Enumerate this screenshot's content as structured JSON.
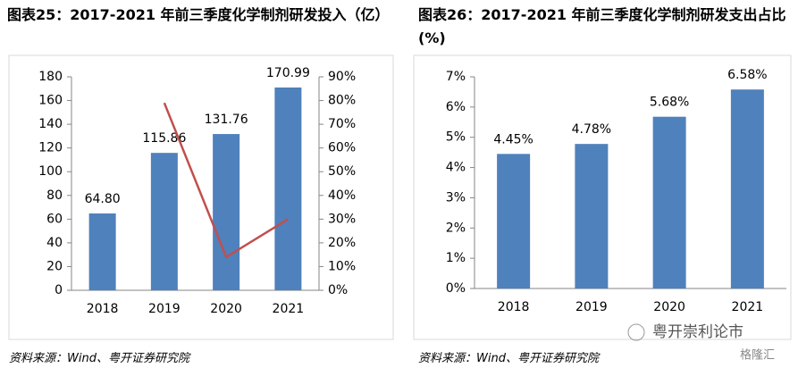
{
  "chart_data": [
    {
      "type": "combo",
      "title": "图表25：2017-2021 年前三季度化学制剂研发投入（亿）",
      "categories": [
        "2018",
        "2019",
        "2020",
        "2021"
      ],
      "series": [
        {
          "type": "bar",
          "color": "#4f81bd",
          "values": [
            64.8,
            115.86,
            131.76,
            170.99
          ],
          "value_labels": [
            "64.80",
            "115.86",
            "131.76",
            "170.99"
          ]
        },
        {
          "type": "line",
          "color": "#c0504d",
          "axis": "y2",
          "values": [
            null,
            79,
            14,
            30
          ]
        }
      ],
      "ylim": [
        0,
        180
      ],
      "yticks": [
        0,
        20,
        40,
        60,
        80,
        100,
        120,
        140,
        160,
        180
      ],
      "y2lim": [
        0,
        90
      ],
      "y2ticks": [
        {
          "value": 0,
          "label": "0%"
        },
        {
          "value": 10,
          "label": "10%"
        },
        {
          "value": 20,
          "label": "20%"
        },
        {
          "value": 30,
          "label": "30%"
        },
        {
          "value": 40,
          "label": "40%"
        },
        {
          "value": 50,
          "label": "50%"
        },
        {
          "value": 60,
          "label": "60%"
        },
        {
          "value": 70,
          "label": "70%"
        },
        {
          "value": 80,
          "label": "80%"
        },
        {
          "value": 90,
          "label": "90%"
        }
      ],
      "source": "资料来源：Wind、粤开证券研究院"
    },
    {
      "type": "bar",
      "title": "图表26：2017-2021 年前三季度化学制剂研发支出占比(%)",
      "categories": [
        "2018",
        "2019",
        "2020",
        "2021"
      ],
      "series": [
        {
          "type": "bar",
          "color": "#4f81bd",
          "values": [
            4.45,
            4.78,
            5.68,
            6.58
          ],
          "value_labels": [
            "4.45%",
            "4.78%",
            "5.68%",
            "6.58%"
          ]
        }
      ],
      "ylim": [
        0,
        7
      ],
      "yticks": [
        {
          "value": 0,
          "label": "0%"
        },
        {
          "value": 1,
          "label": "1%"
        },
        {
          "value": 2,
          "label": "2%"
        },
        {
          "value": 3,
          "label": "3%"
        },
        {
          "value": 4,
          "label": "4%"
        },
        {
          "value": 5,
          "label": "5%"
        },
        {
          "value": 6,
          "label": "6%"
        },
        {
          "value": 7,
          "label": "7%"
        }
      ],
      "source": "资料来源：Wind、粤开证券研究院"
    }
  ],
  "watermark": {
    "account": "粤开崇利论市",
    "site": "格隆汇"
  }
}
